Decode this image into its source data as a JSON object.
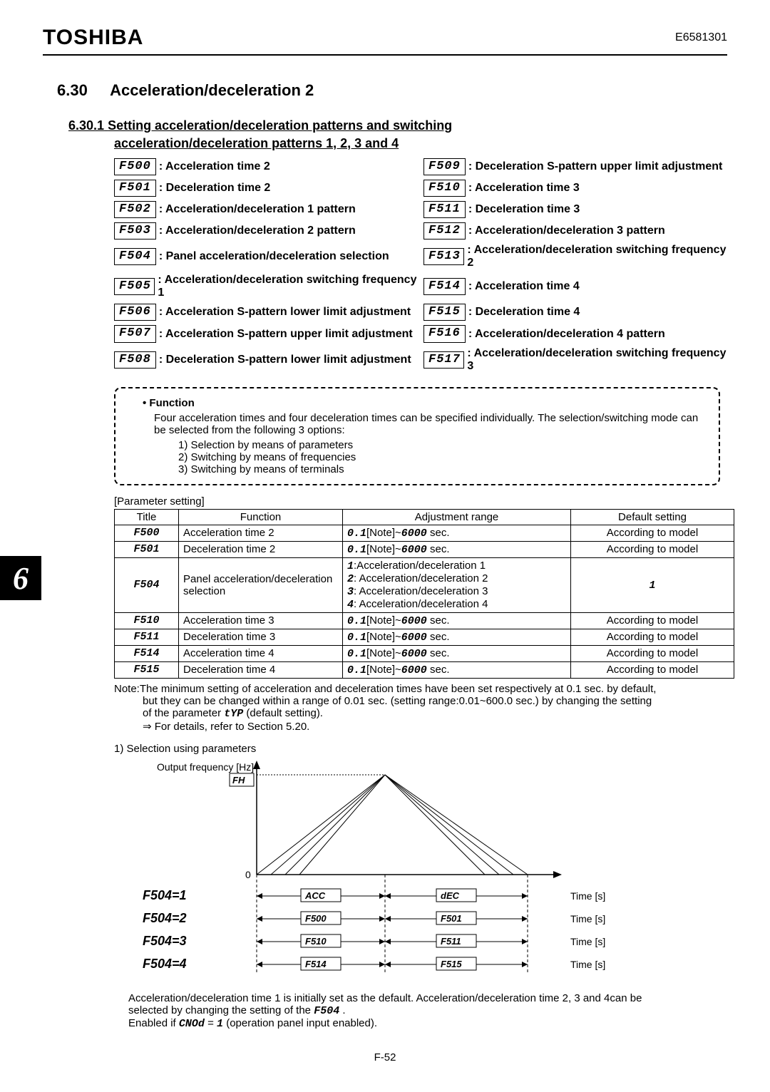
{
  "header": {
    "brand": "TOSHIBA",
    "doc_number": "E6581301"
  },
  "section": {
    "number": "6.30",
    "title": "Acceleration/deceleration 2"
  },
  "subsection": {
    "number": "6.30.1",
    "line1": "Setting acceleration/deceleration patterns and switching",
    "line2": "acceleration/deceleration patterns 1, 2, 3 and 4"
  },
  "params_left": [
    {
      "code": "F500",
      "label": ": Acceleration time 2"
    },
    {
      "code": "F501",
      "label": ": Deceleration time 2"
    },
    {
      "code": "F502",
      "label": ": Acceleration/deceleration 1 pattern"
    },
    {
      "code": "F503",
      "label": ": Acceleration/deceleration 2 pattern"
    },
    {
      "code": "F504",
      "label": ": Panel acceleration/deceleration selection"
    },
    {
      "code": "F505",
      "label": ": Acceleration/deceleration switching frequency 1"
    },
    {
      "code": "F506",
      "label": ": Acceleration S-pattern lower limit adjustment"
    },
    {
      "code": "F507",
      "label": ": Acceleration S-pattern upper limit adjustment"
    },
    {
      "code": "F508",
      "label": ": Deceleration S-pattern lower limit adjustment"
    }
  ],
  "params_right": [
    {
      "code": "F509",
      "label": ": Deceleration S-pattern upper limit adjustment"
    },
    {
      "code": "F510",
      "label": ": Acceleration time 3"
    },
    {
      "code": "F511",
      "label": ": Deceleration time 3"
    },
    {
      "code": "F512",
      "label": ": Acceleration/deceleration 3 pattern"
    },
    {
      "code": "F513",
      "label": ": Acceleration/deceleration switching frequency 2"
    },
    {
      "code": "F514",
      "label": ": Acceleration time 4"
    },
    {
      "code": "F515",
      "label": ": Deceleration time 4"
    },
    {
      "code": "F516",
      "label": ": Acceleration/deceleration 4 pattern"
    },
    {
      "code": "F517",
      "label": ": Acceleration/deceleration switching frequency 3"
    }
  ],
  "function_box": {
    "title": "• Function",
    "body": "Four acceleration times and four deceleration times can be specified individually. The selection/switching mode can be selected from the following 3 options:",
    "opts": [
      "1) Selection by means of parameters",
      "2) Switching by means of frequencies",
      "3) Switching by means of terminals"
    ]
  },
  "ptable": {
    "label": "[Parameter setting]",
    "headers": [
      "Title",
      "Function",
      "Adjustment range",
      "Default setting"
    ],
    "rows": [
      {
        "code": "F500",
        "func": "Acceleration time 2",
        "range_pre": "0.1",
        "range_post": "[Note]~6000 sec.",
        "def": "According to model"
      },
      {
        "code": "F501",
        "func": "Deceleration time 2",
        "range_pre": "0.1",
        "range_post": "[Note]~6000 sec.",
        "def": "According to model"
      },
      {
        "code": "F504",
        "func": "Panel acceleration/deceleration selection",
        "range_lines": [
          {
            "n": "1",
            "t": ":Acceleration/deceleration 1"
          },
          {
            "n": "2",
            "t": ": Acceleration/deceleration 2"
          },
          {
            "n": "3",
            "t": ": Acceleration/deceleration 3"
          },
          {
            "n": "4",
            "t": ": Acceleration/deceleration 4"
          }
        ],
        "def": "1",
        "def_seg": true
      },
      {
        "code": "F510",
        "func": "Acceleration time 3",
        "range_pre": "0.1",
        "range_post": "[Note]~6000 sec.",
        "def": "According to model"
      },
      {
        "code": "F511",
        "func": "Deceleration time 3",
        "range_pre": "0.1",
        "range_post": "[Note]~6000 sec.",
        "def": "According to model"
      },
      {
        "code": "F514",
        "func": "Acceleration time 4",
        "range_pre": "0.1",
        "range_post": "[Note]~6000 sec.",
        "def": "According to model"
      },
      {
        "code": "F515",
        "func": "Deceleration time 4",
        "range_pre": "0.1",
        "range_post": "[Note]~6000 sec.",
        "def": "According to model"
      }
    ]
  },
  "note": {
    "prefix": "Note:",
    "l1": "The minimum setting of acceleration and deceleration times have been set respectively at 0.1 sec. by default,",
    "l2": "but they can be changed within a range of 0.01 sec. (setting range:0.01~600.0 sec.) by changing the setting",
    "l3a": "of the parameter ",
    "l3_code": "tYP",
    "l3b": " (default setting).",
    "l4": "⇒ For details, refer to Section 5.20."
  },
  "sel_label": "1) Selection using parameters",
  "chart": {
    "y_label": "Output frequency [Hz]",
    "fh_label": "FH",
    "zero_label": "0",
    "time_label": "Time [s]",
    "rows": [
      {
        "left": "F504=1",
        "acc": "ACC",
        "dec": "dEC"
      },
      {
        "left": "F504=2",
        "acc": "F500",
        "dec": "F501"
      },
      {
        "left": "F504=3",
        "acc": "F510",
        "dec": "F511"
      },
      {
        "left": "F504=4",
        "acc": "F514",
        "dec": "F515"
      }
    ],
    "caption_l1": "Acceleration/deceleration time 1 is initially set as the default. Acceleration/deceleration time 2, 3 and 4can be",
    "caption_l2a": "selected by changing the setting of the ",
    "caption_l2_code": "F504",
    "caption_l2b": ".",
    "caption_l3a": "Enabled if ",
    "caption_l3_code": "CNOd",
    "caption_l3b": " = ",
    "caption_l3_code2": "1",
    "caption_l3c": " (operation panel input enabled)."
  },
  "tab": "6",
  "footer": "F-52"
}
